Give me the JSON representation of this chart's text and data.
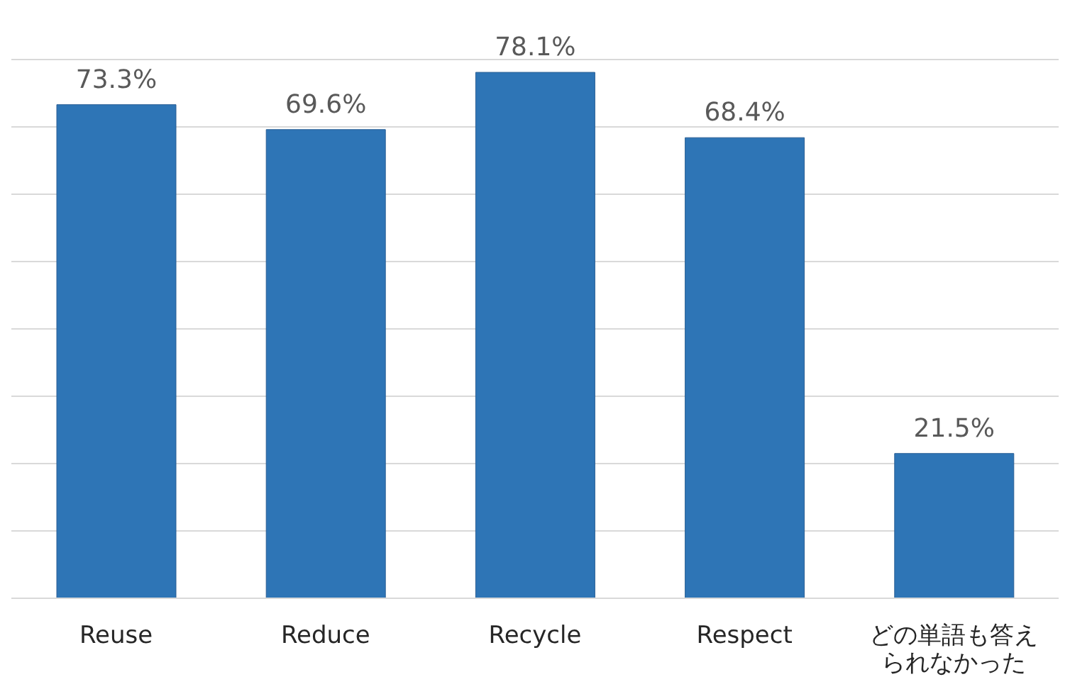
{
  "chart_data": {
    "type": "bar",
    "categories": [
      "Reuse",
      "Reduce",
      "Recycle",
      "Respect",
      "どの単語も答えられなかった"
    ],
    "values": [
      73.3,
      69.6,
      78.1,
      68.4,
      21.5
    ],
    "value_labels": [
      "73.3%",
      "69.6%",
      "78.1%",
      "68.4%",
      "21.5%"
    ],
    "color": "#2e75b6",
    "ylim": [
      0,
      80
    ],
    "yticks": [
      0,
      10,
      20,
      30,
      40,
      50,
      60,
      70,
      80
    ],
    "grid": "y",
    "tick_labels": "x"
  }
}
